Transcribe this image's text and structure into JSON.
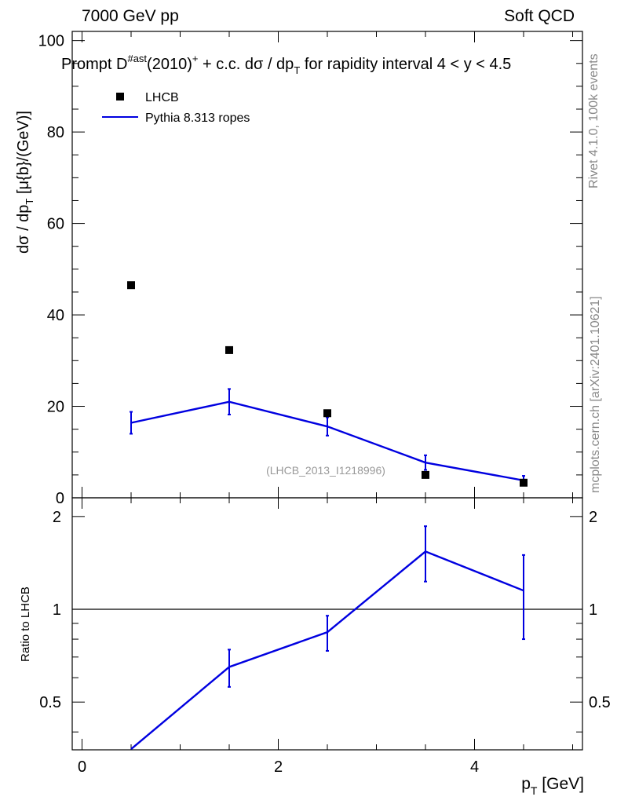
{
  "header": {
    "left": "7000 GeV pp",
    "right": "Soft QCD"
  },
  "side_labels": {
    "rivet": "Rivet 4.1.0,  100k events",
    "mcplots": "mcplots.cern.ch [arXiv:2401.10621]"
  },
  "chart_data": [
    {
      "type": "scatter",
      "title_parts": {
        "prefix": "Prompt D",
        "sup1": "#ast",
        "mid": "(2010)",
        "sup2": "+",
        "suffix": " + c.c.  dσ / dp",
        "sub": "T",
        "tail": " for rapidity interval 4 < y < 4.5"
      },
      "ylabel_parts": {
        "a": "dσ / dp",
        "sub": "T",
        "b": " [μ{b}/(GeV)]"
      },
      "xlim": [
        -0.1,
        5.1
      ],
      "ylim": [
        0,
        102
      ],
      "yticks": [
        0,
        20,
        40,
        60,
        80,
        100
      ],
      "ytick_labels": [
        "0",
        "20",
        "40",
        "60",
        "80",
        "100"
      ],
      "legend": {
        "position": "top-left",
        "entries": [
          "LHCB",
          "Pythia 8.313 ropes"
        ]
      },
      "watermark": "(LHCB_2013_I1218996)",
      "series": [
        {
          "name": "LHCB",
          "style": "marker",
          "color": "#000000",
          "x": [
            0.5,
            1.5,
            2.5,
            3.5,
            4.5
          ],
          "y": [
            46.5,
            32.3,
            18.5,
            5.0,
            3.3
          ]
        },
        {
          "name": "Pythia 8.313 ropes",
          "style": "line",
          "color": "#0000e0",
          "x": [
            0.5,
            1.5,
            2.5,
            3.5,
            4.5
          ],
          "y": [
            16.4,
            21.0,
            15.6,
            7.7,
            3.8
          ],
          "yerr": [
            2.4,
            2.8,
            2.0,
            1.6,
            1.0
          ]
        }
      ]
    },
    {
      "type": "line",
      "ylabel": "Ratio to LHCB",
      "xlabel_parts": {
        "a": "p",
        "sub": "T",
        "b": " [GeV]"
      },
      "xlim": [
        -0.1,
        5.1
      ],
      "ylim": [
        0.35,
        2.3
      ],
      "yscale": "log",
      "xticks": [
        0,
        2,
        4
      ],
      "xtick_labels": [
        "0",
        "2",
        "4"
      ],
      "yticks": [
        0.5,
        1,
        2
      ],
      "ytick_labels": [
        "0.5",
        "1",
        "2"
      ],
      "reference_line": 1,
      "series": [
        {
          "name": "Pythia 8.313 ropes / LHCB",
          "color": "#0000e0",
          "x": [
            0.5,
            1.5,
            2.5,
            3.5,
            4.5
          ],
          "y": [
            0.352,
            0.65,
            0.843,
            1.54,
            1.15
          ],
          "yerr_low": [
            0.0,
            0.09,
            0.11,
            0.31,
            0.35
          ],
          "yerr_high": [
            0.0,
            0.09,
            0.11,
            0.32,
            0.35
          ]
        }
      ]
    }
  ]
}
